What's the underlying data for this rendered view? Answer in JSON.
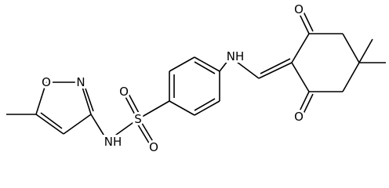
{
  "molecule": {
    "atom_labels": [
      "O",
      "N",
      "NH",
      "S",
      "O",
      "O",
      "NH",
      "O",
      "O"
    ]
  }
}
